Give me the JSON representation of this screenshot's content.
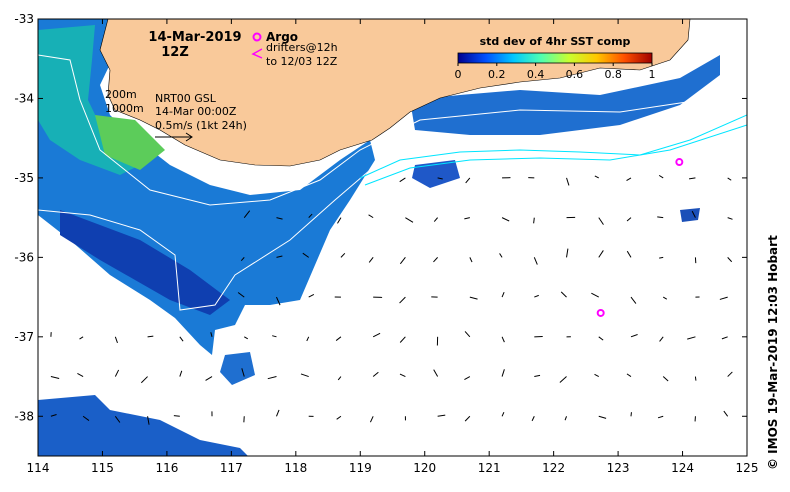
{
  "map": {
    "date": "14-Mar-2019",
    "time": "12Z",
    "legend": {
      "argo_label": "Argo",
      "drifters_line1": "drifters@12h",
      "drifters_line2": "to 12/03 12Z",
      "argo_color": "#ff00ff"
    },
    "annotations": {
      "isobath_200": "200m",
      "isobath_1000": "1000m",
      "source": "NRT00 GSL",
      "source_time": "14-Mar 00:00Z",
      "scale": "0.5m/s (1kt 24h)"
    },
    "colorbar": {
      "title": "std dev of 4hr SST comp",
      "ticks": [
        "0",
        "0.2",
        "0.4",
        "0.6",
        "0.8",
        "1"
      ],
      "colors": [
        "#00008f",
        "#0050ff",
        "#00c8ff",
        "#50ffb0",
        "#c8ff30",
        "#ffc800",
        "#ff5000",
        "#a00000"
      ]
    },
    "axes": {
      "x_ticks": [
        "114",
        "115",
        "116",
        "117",
        "118",
        "119",
        "120",
        "121",
        "122",
        "123",
        "124",
        "125"
      ],
      "y_ticks": [
        "-33",
        "-34",
        "-35",
        "-36",
        "-37",
        "-38"
      ],
      "lon_range": [
        114,
        125
      ],
      "lat_range": [
        -38.5,
        -33
      ]
    },
    "credit": "© IMOS 19-Mar-2019 12:03 Hobart",
    "land_color": "#f9c99a",
    "argo_floats": [
      [
        122.73,
        -36.7
      ],
      [
        123.95,
        -34.8
      ]
    ]
  }
}
